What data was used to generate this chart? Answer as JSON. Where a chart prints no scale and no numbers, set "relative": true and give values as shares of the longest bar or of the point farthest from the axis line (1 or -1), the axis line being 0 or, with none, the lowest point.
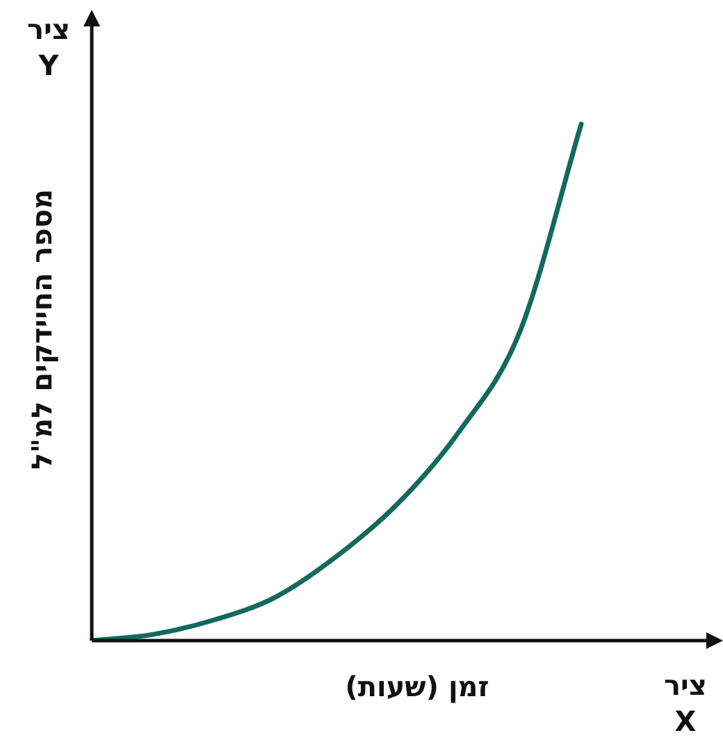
{
  "chart_data": {
    "type": "line",
    "relative": true,
    "xlabel": "זמן (שעות)",
    "ylabel": "מספר החיידקים למ\"ל",
    "annotations": [
      "ציר Y",
      "ציר X"
    ],
    "categories": [
      null,
      null,
      null,
      null,
      null,
      null,
      null,
      null,
      null,
      null,
      null
    ],
    "series": [
      {
        "color": "#13695e",
        "values": [
          0,
          0.012,
          0.04,
          0.084,
          0.163,
          0.265,
          0.404,
          0.599,
          1,
          null,
          null
        ]
      }
    ],
    "legend": false,
    "marker": "none",
    "line_style": "solid"
  }
}
